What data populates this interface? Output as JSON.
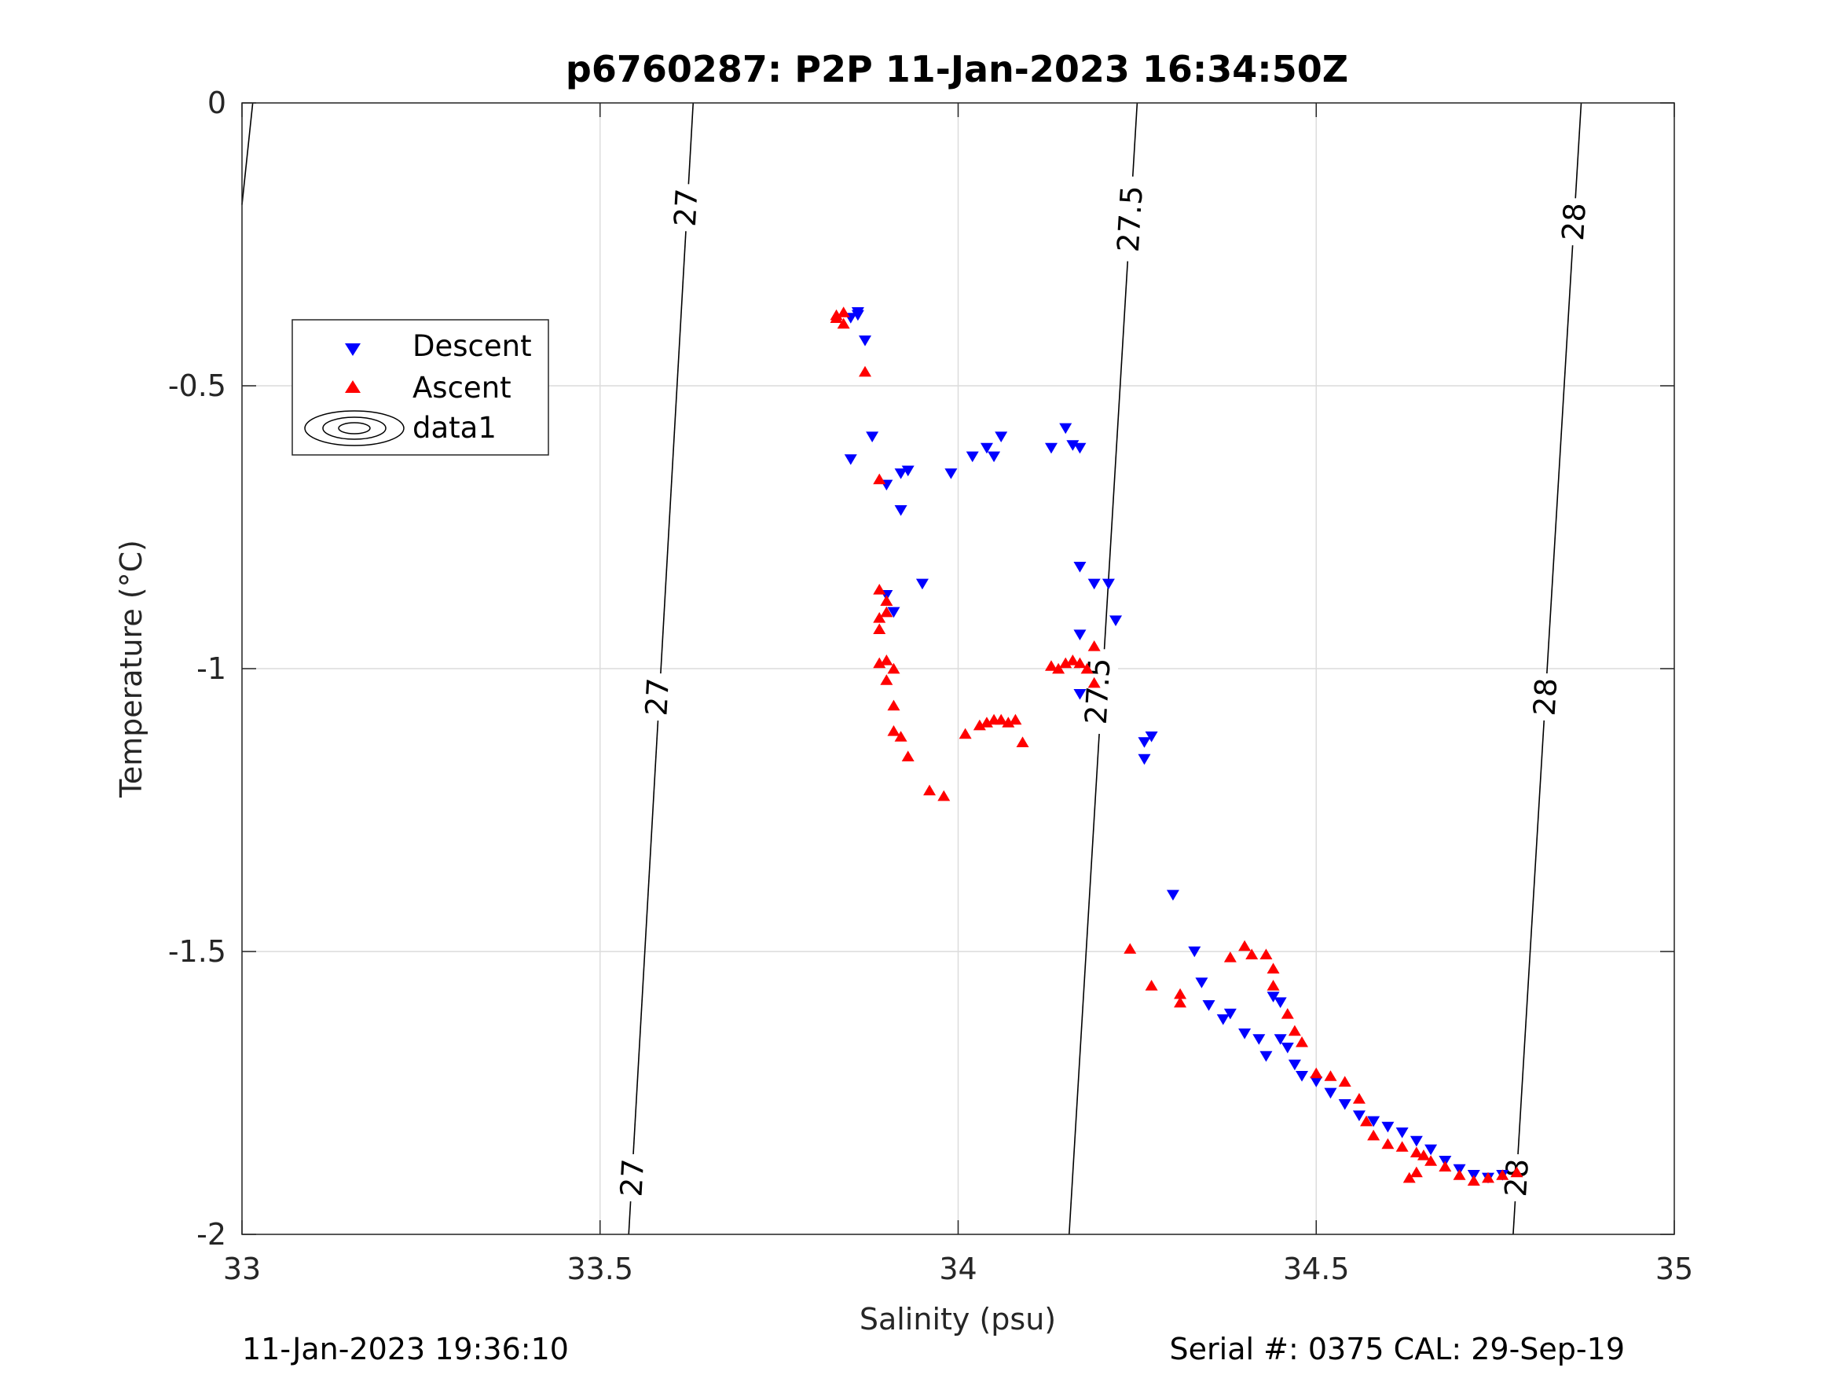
{
  "chart_data": {
    "type": "scatter",
    "title": "p6760287: P2P 11-Jan-2023 16:34:50Z",
    "xlabel": "Salinity (psu)",
    "ylabel": "Temperature (°C)",
    "xlim": [
      33,
      35
    ],
    "ylim": [
      -2,
      0
    ],
    "xticks": [
      33,
      33.5,
      34,
      34.5,
      35
    ],
    "xtick_labels": [
      "33",
      "33.5",
      "34",
      "34.5",
      "35"
    ],
    "yticks": [
      0,
      -0.5,
      -1,
      -1.5,
      -2
    ],
    "ytick_labels": [
      "0",
      "-0.5",
      "-1",
      "-1.5",
      "-2"
    ],
    "grid": true,
    "legend_placement": "upper-left",
    "legend": [
      "Descent",
      "Ascent",
      "data1"
    ],
    "colors": {
      "descent": "#0000ff",
      "ascent": "#ff0000",
      "contour": "#000000"
    },
    "series": [
      {
        "name": "Descent",
        "marker": "triangle-down",
        "color": "#0000ff",
        "points": [
          [
            33.86,
            -0.37
          ],
          [
            33.86,
            -0.375
          ],
          [
            33.85,
            -0.38
          ],
          [
            33.87,
            -0.42
          ],
          [
            33.88,
            -0.59
          ],
          [
            33.85,
            -0.63
          ],
          [
            33.9,
            -0.675
          ],
          [
            33.92,
            -0.655
          ],
          [
            33.93,
            -0.65
          ],
          [
            33.92,
            -0.72
          ],
          [
            33.99,
            -0.655
          ],
          [
            34.02,
            -0.625
          ],
          [
            34.04,
            -0.61
          ],
          [
            34.05,
            -0.625
          ],
          [
            34.06,
            -0.59
          ],
          [
            34.13,
            -0.61
          ],
          [
            34.15,
            -0.575
          ],
          [
            34.16,
            -0.605
          ],
          [
            34.17,
            -0.61
          ],
          [
            33.95,
            -0.85
          ],
          [
            33.9,
            -0.87
          ],
          [
            33.91,
            -0.9
          ],
          [
            34.17,
            -0.82
          ],
          [
            34.19,
            -0.85
          ],
          [
            34.21,
            -0.85
          ],
          [
            34.22,
            -0.915
          ],
          [
            34.17,
            -0.94
          ],
          [
            34.17,
            -1.045
          ],
          [
            34.26,
            -1.13
          ],
          [
            34.27,
            -1.12
          ],
          [
            34.26,
            -1.16
          ],
          [
            34.3,
            -1.4
          ],
          [
            34.33,
            -1.5
          ],
          [
            34.34,
            -1.555
          ],
          [
            34.35,
            -1.595
          ],
          [
            34.38,
            -1.61
          ],
          [
            34.37,
            -1.62
          ],
          [
            34.4,
            -1.645
          ],
          [
            34.42,
            -1.655
          ],
          [
            34.43,
            -1.685
          ],
          [
            34.45,
            -1.655
          ],
          [
            34.44,
            -1.58
          ],
          [
            34.45,
            -1.59
          ],
          [
            34.46,
            -1.67
          ],
          [
            34.47,
            -1.7
          ],
          [
            34.48,
            -1.72
          ],
          [
            34.5,
            -1.73
          ],
          [
            34.52,
            -1.75
          ],
          [
            34.54,
            -1.77
          ],
          [
            34.56,
            -1.79
          ],
          [
            34.58,
            -1.8
          ],
          [
            34.6,
            -1.81
          ],
          [
            34.62,
            -1.82
          ],
          [
            34.64,
            -1.835
          ],
          [
            34.66,
            -1.85
          ],
          [
            34.68,
            -1.87
          ],
          [
            34.7,
            -1.885
          ],
          [
            34.72,
            -1.895
          ],
          [
            34.74,
            -1.9
          ],
          [
            34.76,
            -1.895
          ]
        ]
      },
      {
        "name": "Ascent",
        "marker": "triangle-up",
        "color": "#ff0000",
        "points": [
          [
            33.83,
            -0.38
          ],
          [
            33.84,
            -0.37
          ],
          [
            33.84,
            -0.39
          ],
          [
            33.83,
            -0.375
          ],
          [
            33.87,
            -0.475
          ],
          [
            33.89,
            -0.665
          ],
          [
            33.89,
            -0.86
          ],
          [
            33.9,
            -0.88
          ],
          [
            33.89,
            -0.91
          ],
          [
            33.89,
            -0.93
          ],
          [
            33.9,
            -0.9
          ],
          [
            33.89,
            -0.99
          ],
          [
            33.9,
            -0.985
          ],
          [
            33.91,
            -1.0
          ],
          [
            33.9,
            -1.02
          ],
          [
            33.91,
            -1.065
          ],
          [
            33.91,
            -1.11
          ],
          [
            33.92,
            -1.12
          ],
          [
            33.93,
            -1.155
          ],
          [
            33.96,
            -1.215
          ],
          [
            33.98,
            -1.225
          ],
          [
            34.01,
            -1.115
          ],
          [
            34.03,
            -1.1
          ],
          [
            34.04,
            -1.095
          ],
          [
            34.05,
            -1.09
          ],
          [
            34.06,
            -1.09
          ],
          [
            34.07,
            -1.095
          ],
          [
            34.08,
            -1.09
          ],
          [
            34.09,
            -1.13
          ],
          [
            34.13,
            -0.995
          ],
          [
            34.14,
            -1.0
          ],
          [
            34.15,
            -0.99
          ],
          [
            34.16,
            -0.985
          ],
          [
            34.17,
            -0.99
          ],
          [
            34.18,
            -1.0
          ],
          [
            34.19,
            -0.96
          ],
          [
            34.19,
            -1.025
          ],
          [
            34.24,
            -1.495
          ],
          [
            34.27,
            -1.56
          ],
          [
            34.31,
            -1.575
          ],
          [
            34.31,
            -1.59
          ],
          [
            34.38,
            -1.51
          ],
          [
            34.4,
            -1.49
          ],
          [
            34.41,
            -1.505
          ],
          [
            34.43,
            -1.505
          ],
          [
            34.44,
            -1.53
          ],
          [
            34.44,
            -1.56
          ],
          [
            34.46,
            -1.61
          ],
          [
            34.47,
            -1.64
          ],
          [
            34.48,
            -1.66
          ],
          [
            34.5,
            -1.715
          ],
          [
            34.52,
            -1.72
          ],
          [
            34.54,
            -1.73
          ],
          [
            34.56,
            -1.76
          ],
          [
            34.57,
            -1.8
          ],
          [
            34.58,
            -1.825
          ],
          [
            34.6,
            -1.84
          ],
          [
            34.62,
            -1.845
          ],
          [
            34.64,
            -1.855
          ],
          [
            34.65,
            -1.86
          ],
          [
            34.64,
            -1.89
          ],
          [
            34.63,
            -1.9
          ],
          [
            34.66,
            -1.87
          ],
          [
            34.68,
            -1.88
          ],
          [
            34.7,
            -1.895
          ],
          [
            34.72,
            -1.905
          ],
          [
            34.74,
            -1.9
          ],
          [
            34.76,
            -1.895
          ],
          [
            34.78,
            -1.89
          ]
        ]
      }
    ],
    "contours": [
      {
        "level": "27",
        "line": [
          [
            33.54,
            -2.0
          ],
          [
            33.63,
            0.0
          ]
        ],
        "labels": [
          {
            "text": "27",
            "at": [
              33.545,
              -1.9
            ]
          },
          {
            "text": "27",
            "at": [
              33.58,
              -1.05
            ]
          },
          {
            "text": "27",
            "at": [
              33.62,
              -0.185
            ]
          }
        ]
      },
      {
        "level": "27.5",
        "line": [
          [
            34.155,
            -2.0
          ],
          [
            34.25,
            0.0
          ]
        ],
        "labels": [
          {
            "text": "27.5",
            "at": [
              34.195,
              -1.04
            ]
          },
          {
            "text": "27.5",
            "at": [
              34.24,
              -0.205
            ]
          }
        ]
      },
      {
        "level": "28",
        "line": [
          [
            34.775,
            -2.0
          ],
          [
            34.87,
            0.0
          ]
        ],
        "labels": [
          {
            "text": "28",
            "at": [
              34.78,
              -1.9
            ]
          },
          {
            "text": "28",
            "at": [
              34.82,
              -1.05
            ]
          },
          {
            "text": "28",
            "at": [
              34.86,
              -0.21
            ]
          }
        ]
      },
      {
        "level": "",
        "line": [
          [
            33.0,
            -0.18
          ],
          [
            33.015,
            0.0
          ]
        ],
        "labels": []
      }
    ]
  },
  "footer": {
    "timestamp": "11-Jan-2023 19:36:10",
    "serial": "Serial #: 0375  CAL: 29-Sep-19"
  }
}
